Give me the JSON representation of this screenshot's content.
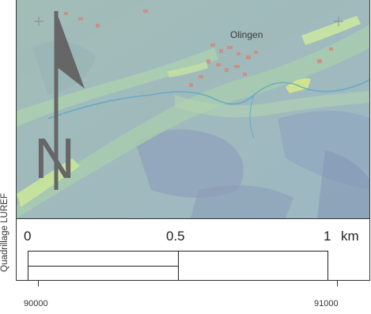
{
  "map": {
    "place_label": "Olingen",
    "north_letter": "N",
    "colors": {
      "background": "#9fb8bf",
      "valley": "#a8c8b0",
      "highlight": "#c6e39a",
      "dark_slope": "#8296b4",
      "water": "#5aa8c8",
      "buildings": "#d68a7a"
    }
  },
  "scale_bar": {
    "label_start": "0",
    "label_mid": "0.5",
    "label_end": "1",
    "unit": "km"
  },
  "axis": {
    "x_tick_left": "90000",
    "x_tick_right": "91000",
    "y_label": "Quadrillage LUREF"
  },
  "icons": {
    "north_arrow": "north-arrow-icon",
    "grid_crosshair": "crosshair-icon"
  }
}
